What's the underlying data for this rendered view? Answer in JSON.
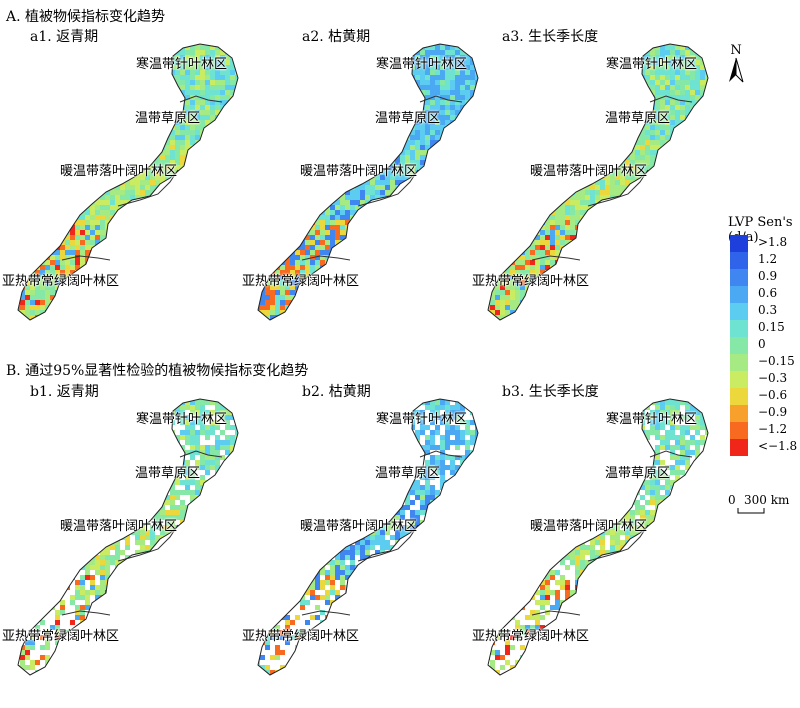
{
  "section_a": {
    "title": "A. 植被物候指标变化趋势"
  },
  "section_b": {
    "title": "B. 通过95%显著性检验的植被物候指标变化趋势"
  },
  "panels": [
    {
      "id": "a1",
      "title": "a1. 返青期",
      "scheme": "green",
      "sig": false
    },
    {
      "id": "a2",
      "title": "a2. 枯黄期",
      "scheme": "blue",
      "sig": false
    },
    {
      "id": "a3",
      "title": "a3. 生长季长度",
      "scheme": "green",
      "sig": false
    },
    {
      "id": "b1",
      "title": "b1. 返青期",
      "scheme": "green",
      "sig": true
    },
    {
      "id": "b2",
      "title": "b2. 枯黄期",
      "scheme": "blue",
      "sig": true
    },
    {
      "id": "b3",
      "title": "b3. 生长季长度",
      "scheme": "green",
      "sig": true
    }
  ],
  "zones": [
    "寒温带针叶林区",
    "温带草原区",
    "暖温带落叶阔叶林区",
    "亚热带常绿阔叶林区"
  ],
  "legend": {
    "title_line1": "LVP Sen's",
    "title_line2": "(d/a)",
    "classes": [
      {
        "label": ">1.8",
        "color": "#1f3fdc"
      },
      {
        "label": "1.2",
        "color": "#2e63ea"
      },
      {
        "label": "0.9",
        "color": "#3f86f0"
      },
      {
        "label": "0.6",
        "color": "#4aa9f2"
      },
      {
        "label": "0.3",
        "color": "#5ccdf0"
      },
      {
        "label": "0.15",
        "color": "#6ee3d2"
      },
      {
        "label": "0",
        "color": "#86e8a6"
      },
      {
        "label": "−0.15",
        "color": "#a6ea84"
      },
      {
        "label": "−0.3",
        "color": "#c9ec62"
      },
      {
        "label": "−0.6",
        "color": "#ecd73c"
      },
      {
        "label": "−0.9",
        "color": "#f7a02c"
      },
      {
        "label": "−1.2",
        "color": "#f76a20"
      },
      {
        "label": "<−1.8",
        "color": "#f0261a"
      }
    ]
  },
  "north_arrow": {
    "label": "N"
  },
  "scalebar": {
    "label_zero": "0",
    "label_dist": "300 km"
  }
}
